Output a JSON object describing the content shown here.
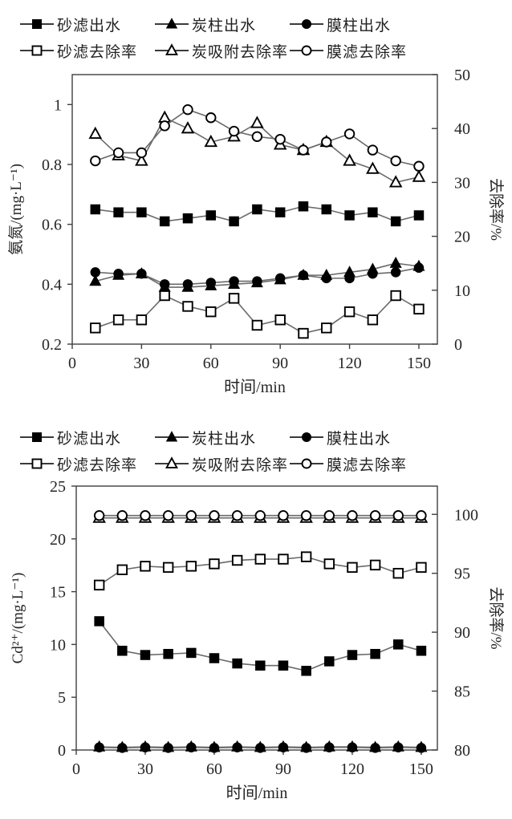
{
  "figure": {
    "background": "#ffffff"
  },
  "colors": {
    "axis": "#3f3f3f",
    "line": "#6a6a6a",
    "marker": "#000000",
    "text": "#262626"
  },
  "chart_data": [
    {
      "type": "line",
      "title": "",
      "xlabel": "时间/min",
      "ylabel_left": "氨氮/(mg·L⁻¹)",
      "ylabel_right": "去除率/%",
      "grid": false,
      "legend_position": "top",
      "x": [
        10,
        20,
        30,
        40,
        50,
        60,
        70,
        80,
        90,
        100,
        110,
        120,
        130,
        140,
        150
      ],
      "xlim": [
        0,
        158
      ],
      "x_ticks": [
        0,
        30,
        60,
        90,
        120,
        150
      ],
      "x_tick_labels": [
        "0",
        "30",
        "60",
        "90",
        "120",
        "150"
      ],
      "ylim_left": [
        0.2,
        1.1
      ],
      "y_ticks_left": [
        0.2,
        0.4,
        0.6,
        0.8,
        1.0
      ],
      "y_tick_labels_left": [
        "0.2",
        "0.4",
        "0.6",
        "0.8",
        "1"
      ],
      "ylim_right": [
        0,
        50
      ],
      "y_ticks_right": [
        0,
        10,
        20,
        30,
        40,
        50
      ],
      "y_tick_labels_right": [
        "0",
        "10",
        "20",
        "30",
        "40",
        "50"
      ],
      "legend": [
        {
          "label": "砂滤出水",
          "marker": "square",
          "fill": "filled"
        },
        {
          "label": "炭柱出水",
          "marker": "triangle",
          "fill": "filled"
        },
        {
          "label": "膜柱出水",
          "marker": "circle",
          "fill": "filled"
        },
        {
          "label": "砂滤去除率",
          "marker": "square",
          "fill": "open"
        },
        {
          "label": "炭吸附去除率",
          "marker": "triangle",
          "fill": "open"
        },
        {
          "label": "膜滤去除率",
          "marker": "circle",
          "fill": "open"
        }
      ],
      "series": [
        {
          "name": "砂滤出水",
          "axis": "left",
          "marker": "square",
          "fill": "filled",
          "values": [
            0.65,
            0.64,
            0.64,
            0.61,
            0.62,
            0.63,
            0.61,
            0.65,
            0.64,
            0.66,
            0.65,
            0.63,
            0.64,
            0.61,
            0.63
          ]
        },
        {
          "name": "砂滤去除率",
          "axis": "right",
          "marker": "square",
          "fill": "open",
          "values": [
            3,
            4.5,
            4.5,
            9,
            7,
            6,
            8.5,
            3.5,
            4.5,
            2,
            3,
            6,
            4.5,
            9,
            6.5
          ]
        },
        {
          "name": "炭柱出水",
          "axis": "left",
          "marker": "triangle",
          "fill": "filled",
          "values": [
            0.41,
            0.43,
            0.435,
            0.39,
            0.39,
            0.395,
            0.4,
            0.405,
            0.415,
            0.43,
            0.43,
            0.44,
            0.45,
            0.47,
            0.46
          ]
        },
        {
          "name": "炭吸附去除率",
          "axis": "right",
          "marker": "triangle",
          "fill": "open",
          "values": [
            39,
            35,
            34,
            42,
            40,
            37.5,
            38.5,
            41,
            37,
            36,
            37.5,
            34,
            32.5,
            30,
            31
          ]
        },
        {
          "name": "膜柱出水",
          "axis": "left",
          "marker": "circle",
          "fill": "filled",
          "values": [
            0.44,
            0.435,
            0.435,
            0.4,
            0.4,
            0.405,
            0.41,
            0.41,
            0.42,
            0.43,
            0.42,
            0.42,
            0.435,
            0.44,
            0.455
          ]
        },
        {
          "name": "膜滤去除率",
          "axis": "right",
          "marker": "circle",
          "fill": "open",
          "values": [
            34,
            35.5,
            35.5,
            40.5,
            43.5,
            42,
            39.5,
            38.5,
            38,
            36,
            37.5,
            39,
            36,
            34,
            33
          ]
        }
      ]
    },
    {
      "type": "line",
      "title": "",
      "xlabel": "时间/min",
      "ylabel_left": "Cd²⁺/(mg·L⁻¹)",
      "ylabel_right": "去除率/%",
      "grid": false,
      "legend_position": "top",
      "x": [
        10,
        20,
        30,
        40,
        50,
        60,
        70,
        80,
        90,
        100,
        110,
        120,
        130,
        140,
        150
      ],
      "xlim": [
        0,
        157
      ],
      "x_ticks": [
        0,
        30,
        60,
        90,
        120,
        150
      ],
      "x_tick_labels": [
        "0",
        "30",
        "60",
        "90",
        "120",
        "150"
      ],
      "ylim_left": [
        0,
        25
      ],
      "y_ticks_left": [
        0,
        5,
        10,
        15,
        20,
        25
      ],
      "y_tick_labels_left": [
        "0",
        "5",
        "10",
        "15",
        "20",
        "25"
      ],
      "ylim_right": [
        80,
        102.4
      ],
      "y_ticks_right": [
        80,
        85,
        90,
        95,
        100
      ],
      "y_tick_labels_right": [
        "80",
        "85",
        "90",
        "95",
        "100"
      ],
      "legend": [
        {
          "label": "砂滤出水",
          "marker": "square",
          "fill": "filled"
        },
        {
          "label": "炭柱出水",
          "marker": "triangle",
          "fill": "filled"
        },
        {
          "label": "膜柱出水",
          "marker": "circle",
          "fill": "filled"
        },
        {
          "label": "砂滤去除率",
          "marker": "square",
          "fill": "open"
        },
        {
          "label": "炭吸附去除率",
          "marker": "triangle",
          "fill": "open"
        },
        {
          "label": "膜滤去除率",
          "marker": "circle",
          "fill": "open"
        }
      ],
      "series": [
        {
          "name": "砂滤出水",
          "axis": "left",
          "marker": "square",
          "fill": "filled",
          "values": [
            12.2,
            9.4,
            9,
            9.1,
            9.2,
            8.7,
            8.2,
            8,
            8,
            7.5,
            8.4,
            9,
            9.1,
            10,
            9.4
          ]
        },
        {
          "name": "砂滤去除率",
          "axis": "right",
          "marker": "square",
          "fill": "open",
          "values": [
            94,
            95.3,
            95.6,
            95.5,
            95.6,
            95.8,
            96.1,
            96.2,
            96.2,
            96.4,
            95.8,
            95.5,
            95.7,
            95,
            95.5
          ]
        },
        {
          "name": "炭柱出水",
          "axis": "left",
          "marker": "triangle",
          "fill": "filled",
          "values": [
            0.3,
            0.25,
            0.3,
            0.25,
            0.3,
            0.25,
            0.3,
            0.25,
            0.3,
            0.25,
            0.3,
            0.3,
            0.25,
            0.3,
            0.25
          ]
        },
        {
          "name": "炭吸附去除率",
          "axis": "right",
          "marker": "triangle",
          "fill": "open",
          "values": [
            99.7,
            99.7,
            99.7,
            99.7,
            99.7,
            99.7,
            99.7,
            99.7,
            99.7,
            99.7,
            99.7,
            99.7,
            99.7,
            99.7,
            99.7
          ]
        },
        {
          "name": "膜柱出水",
          "axis": "left",
          "marker": "circle",
          "fill": "filled",
          "values": [
            0.25,
            0.2,
            0.25,
            0.2,
            0.25,
            0.2,
            0.25,
            0.2,
            0.25,
            0.2,
            0.25,
            0.25,
            0.2,
            0.25,
            0.2
          ]
        },
        {
          "name": "膜滤去除率",
          "axis": "right",
          "marker": "circle",
          "fill": "open",
          "values": [
            99.9,
            99.9,
            99.9,
            99.9,
            99.9,
            99.9,
            99.9,
            99.9,
            99.9,
            99.9,
            99.9,
            99.9,
            99.9,
            99.9,
            99.9
          ]
        }
      ]
    }
  ]
}
